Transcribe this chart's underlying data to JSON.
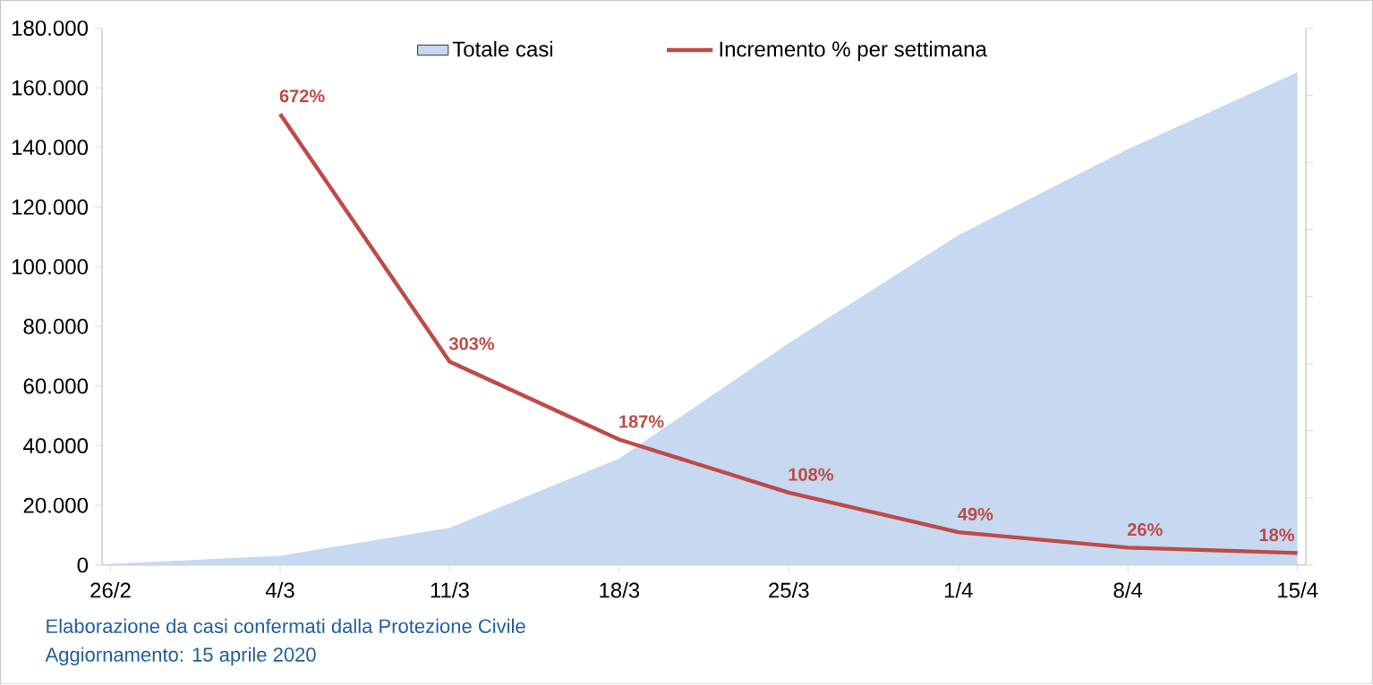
{
  "chart_data": {
    "type": "area",
    "categories": [
      "26/2",
      "4/3",
      "11/3",
      "18/3",
      "25/3",
      "1/4",
      "8/4",
      "15/4"
    ],
    "series": [
      {
        "name": "Totale casi",
        "color": "#c6d9f0",
        "values": [
          400,
          3100,
          12500,
          35700,
          74400,
          110600,
          139400,
          165200
        ]
      },
      {
        "name": "Incremento % per settimana",
        "type": "line",
        "axis": "y2",
        "color": "#be4b48",
        "values": [
          null,
          672,
          303,
          187,
          108,
          49,
          26,
          18
        ],
        "value_labels": [
          null,
          "672%",
          "303%",
          "187%",
          "108%",
          "49%",
          "26%",
          "18%"
        ]
      }
    ],
    "ylim": [
      0,
      180000
    ],
    "yticks": [
      {
        "value": 0,
        "label": "0"
      },
      {
        "value": 20000,
        "label": "20.000"
      },
      {
        "value": 40000,
        "label": "40.000"
      },
      {
        "value": 60000,
        "label": "60.000"
      },
      {
        "value": 80000,
        "label": "80.000"
      },
      {
        "value": 100000,
        "label": "100.000"
      },
      {
        "value": 120000,
        "label": "120.000"
      },
      {
        "value": 140000,
        "label": "140.000"
      },
      {
        "value": 160000,
        "label": "160.000"
      },
      {
        "value": 180000,
        "label": "180.000"
      }
    ],
    "y2lim": [
      0,
      800
    ],
    "y2ticks": [
      {
        "value": 0,
        "label": null
      },
      {
        "value": 100,
        "label": null
      },
      {
        "value": 200,
        "label": null
      },
      {
        "value": 300,
        "label": null
      },
      {
        "value": 400,
        "label": null
      },
      {
        "value": 500,
        "label": null
      },
      {
        "value": 600,
        "label": null
      },
      {
        "value": 700,
        "label": null
      },
      {
        "value": 800,
        "label": null
      }
    ],
    "legend": "top",
    "annotations": [
      "Elaborazione da casi confermati dalla Protezione Civile",
      "Aggiornamento: 15 aprile 2020"
    ]
  }
}
